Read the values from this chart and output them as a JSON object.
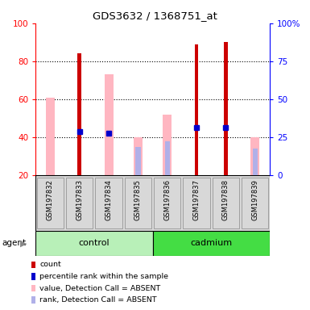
{
  "title": "GDS3632 / 1368751_at",
  "samples": [
    "GSM197832",
    "GSM197833",
    "GSM197834",
    "GSM197835",
    "GSM197836",
    "GSM197837",
    "GSM197838",
    "GSM197839"
  ],
  "red_bars": [
    0,
    84,
    0,
    0,
    0,
    89,
    90,
    0
  ],
  "pink_bars": [
    61,
    0,
    73,
    40,
    52,
    0,
    0,
    40
  ],
  "blue_markers": [
    null,
    43,
    42,
    null,
    null,
    45,
    45,
    null
  ],
  "lavender_bars": [
    null,
    null,
    null,
    35,
    38,
    null,
    null,
    34
  ],
  "ylim_left": [
    20,
    100
  ],
  "ylim_right": [
    0,
    100
  ],
  "yticks_left": [
    20,
    40,
    60,
    80,
    100
  ],
  "yticks_right": [
    0,
    25,
    50,
    75,
    100
  ],
  "yticklabels_right": [
    "0",
    "25",
    "50",
    "75",
    "100%"
  ],
  "red_color": "#cc0000",
  "pink_color": "#ffb6c1",
  "blue_color": "#0000cc",
  "lavender_color": "#b0b0e8",
  "bg_color": "#d8d8d8",
  "control_color": "#b8f0b8",
  "cadmium_color": "#44dd44",
  "legend_labels": [
    "count",
    "percentile rank within the sample",
    "value, Detection Call = ABSENT",
    "rank, Detection Call = ABSENT"
  ]
}
